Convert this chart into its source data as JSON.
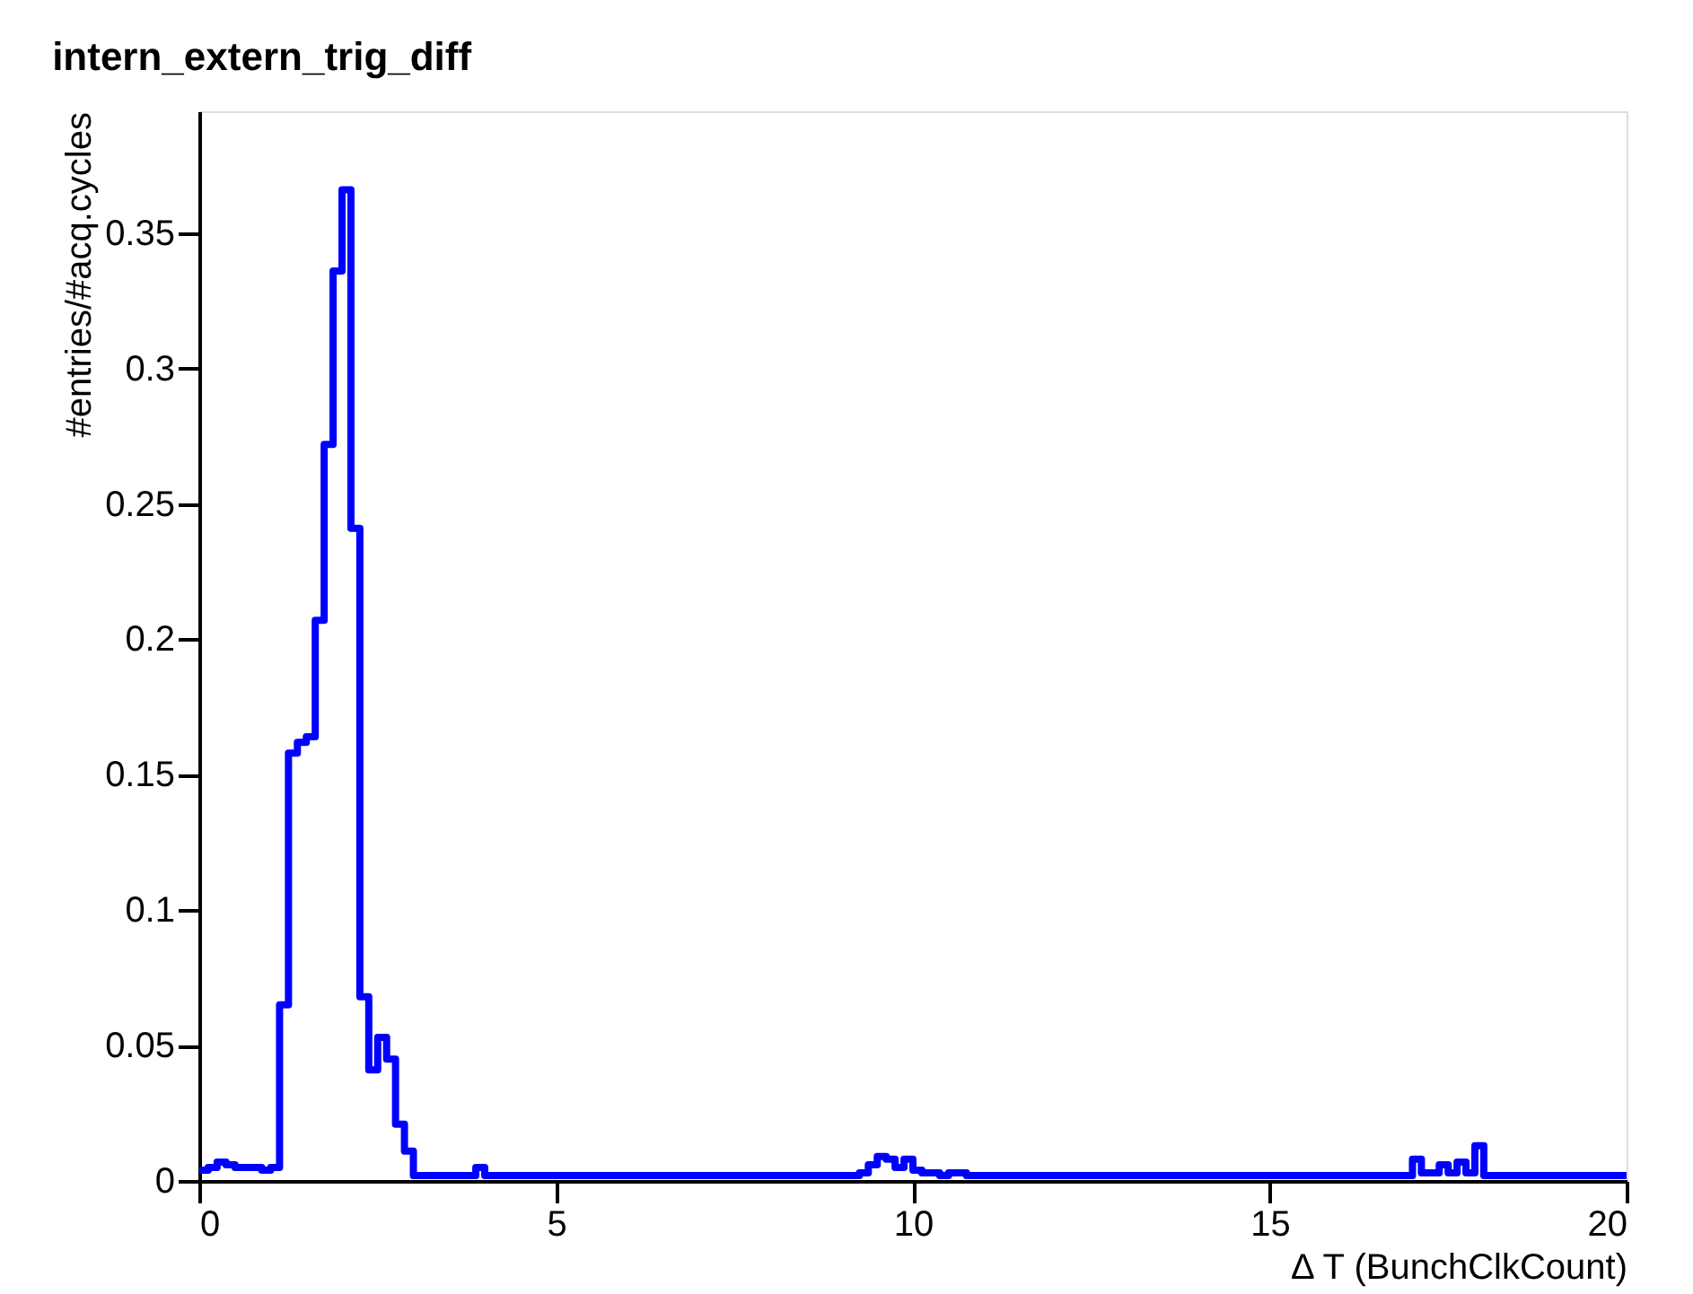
{
  "chart_data": {
    "type": "histogram",
    "title": "intern_extern_trig_diff",
    "xlabel": "Δ T (BunchClkCount)",
    "ylabel": "#entries/#acq.cycles",
    "bins": [
      0,
      0.125,
      0.25,
      0.375,
      0.5,
      0.625,
      0.75,
      0.875,
      1,
      1.125,
      1.25,
      1.375,
      1.5,
      1.625,
      1.75,
      1.875,
      2,
      2.125,
      2.25,
      2.375,
      2.5,
      2.625,
      2.75,
      2.875,
      3,
      3.125,
      3.25,
      3.375,
      3.5,
      3.625,
      3.75,
      3.875,
      4,
      4.125,
      4.25,
      4.375,
      4.5,
      4.625,
      4.75,
      4.875,
      5,
      5.125,
      5.25,
      5.375,
      5.5,
      5.625,
      5.75,
      5.875,
      6,
      6.125,
      6.25,
      6.375,
      6.5,
      6.625,
      6.75,
      6.875,
      7,
      7.125,
      7.25,
      7.375,
      7.5,
      7.625,
      7.75,
      7.875,
      8,
      8.125,
      8.25,
      8.375,
      8.5,
      8.625,
      8.75,
      8.875,
      9,
      9.125,
      9.25,
      9.375,
      9.5,
      9.625,
      9.75,
      9.875,
      10,
      10.125,
      10.25,
      10.375,
      10.5,
      10.625,
      10.75,
      10.875,
      11,
      11.125,
      11.25,
      11.375,
      11.5,
      11.625,
      11.75,
      11.875,
      12,
      12.125,
      12.25,
      12.375,
      12.5,
      12.625,
      12.75,
      12.875,
      13,
      13.125,
      13.25,
      13.375,
      13.5,
      13.625,
      13.75,
      13.875,
      14,
      14.125,
      14.25,
      14.375,
      14.5,
      14.625,
      14.75,
      14.875,
      15,
      15.125,
      15.25,
      15.375,
      15.5,
      15.625,
      15.75,
      15.875,
      16,
      16.125,
      16.25,
      16.375,
      16.5,
      16.625,
      16.75,
      16.875,
      17,
      17.125,
      17.25,
      17.375,
      17.5,
      17.625,
      17.75,
      17.875,
      18,
      18.125,
      18.25,
      18.375,
      18.5,
      18.625,
      18.75,
      18.875,
      19,
      19.125,
      19.25,
      19.375,
      19.5,
      19.625,
      19.75,
      19.875,
      20
    ],
    "values": [
      0.004,
      0.005,
      0.007,
      0.006,
      0.005,
      0.005,
      0.005,
      0.004,
      0.005,
      0.065,
      0.158,
      0.162,
      0.164,
      0.207,
      0.272,
      0.336,
      0.366,
      0.241,
      0.068,
      0.041,
      0.053,
      0.045,
      0.021,
      0.011,
      0.002,
      0.002,
      0.002,
      0.002,
      0.002,
      0.002,
      0.002,
      0.005,
      0.002,
      0.002,
      0.002,
      0.002,
      0.002,
      0.002,
      0.002,
      0.002,
      0.002,
      0.002,
      0.002,
      0.002,
      0.002,
      0.002,
      0.002,
      0.002,
      0.002,
      0.002,
      0.002,
      0.002,
      0.002,
      0.002,
      0.002,
      0.002,
      0.002,
      0.002,
      0.002,
      0.002,
      0.002,
      0.002,
      0.002,
      0.002,
      0.002,
      0.002,
      0.002,
      0.002,
      0.002,
      0.002,
      0.002,
      0.002,
      0.002,
      0.002,
      0.003,
      0.006,
      0.009,
      0.008,
      0.005,
      0.008,
      0.004,
      0.003,
      0.003,
      0.002,
      0.003,
      0.003,
      0.002,
      0.002,
      0.002,
      0.002,
      0.002,
      0.002,
      0.002,
      0.002,
      0.002,
      0.002,
      0.002,
      0.002,
      0.002,
      0.002,
      0.002,
      0.002,
      0.002,
      0.002,
      0.002,
      0.002,
      0.002,
      0.002,
      0.002,
      0.002,
      0.002,
      0.002,
      0.002,
      0.002,
      0.002,
      0.002,
      0.002,
      0.002,
      0.002,
      0.002,
      0.002,
      0.002,
      0.002,
      0.002,
      0.002,
      0.002,
      0.002,
      0.002,
      0.002,
      0.002,
      0.002,
      0.002,
      0.002,
      0.002,
      0.002,
      0.002,
      0.008,
      0.003,
      0.003,
      0.006,
      0.003,
      0.007,
      0.003,
      0.013,
      0.002,
      0.002,
      0.002,
      0.002,
      0.002,
      0.002,
      0.002,
      0.002,
      0.002,
      0.002,
      0.002,
      0.002,
      0.002,
      0.002,
      0.002,
      0.002
    ],
    "color": "#0000ff",
    "grid": false,
    "xlim": [
      0,
      20
    ],
    "xticks": [
      0,
      5,
      10,
      15,
      20
    ],
    "ylim": [
      0,
      0.395
    ],
    "yticks": [
      0,
      0.05,
      0.1,
      0.15,
      0.2,
      0.25,
      0.3,
      0.35
    ]
  }
}
